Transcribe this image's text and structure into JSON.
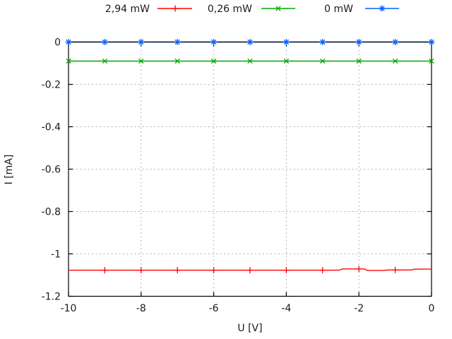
{
  "page": {
    "background": "#ffffff",
    "text_color": "#1a1a1a",
    "border_color": "#000000",
    "grid_color": "#b0b0b0"
  },
  "chart_data": {
    "type": "line",
    "title": "",
    "xlabel": "U [V]",
    "ylabel": "I [mA]",
    "xlim": [
      -10,
      0
    ],
    "ylim": [
      -1.2,
      0
    ],
    "xticks": [
      -10,
      -8,
      -6,
      -4,
      -2,
      0
    ],
    "xtick_labels": [
      "-10",
      "-8",
      "-6",
      "-4",
      "-2",
      "0"
    ],
    "yticks": [
      0,
      -0.2,
      -0.4,
      -0.6,
      -0.8,
      -1,
      -1.2
    ],
    "ytick_labels": [
      "0",
      "-0.2",
      "-0.4",
      "-0.6",
      "-0.8",
      "-1",
      "-1.2"
    ],
    "grid": true,
    "legend_position": "top-outside",
    "x": [
      -10,
      -9,
      -8,
      -7,
      -6,
      -5,
      -4,
      -3,
      -2,
      -1,
      0
    ],
    "series": [
      {
        "name": "2,94 mW",
        "color": "#ff0000",
        "marker": "plus",
        "values": [
          -1.077,
          -1.077,
          -1.077,
          -1.077,
          -1.077,
          -1.077,
          -1.077,
          -1.077,
          -1.071,
          -1.076,
          -1.072
        ],
        "marker_x": [
          -9,
          -8,
          -7,
          -6,
          -5,
          -4,
          -3,
          -2,
          -1
        ],
        "line_points": [
          [
            -10,
            -1.077
          ],
          [
            -2.55,
            -1.077
          ],
          [
            -2.45,
            -1.071
          ],
          [
            -1.85,
            -1.071
          ],
          [
            -1.78,
            -1.078
          ],
          [
            -1.3,
            -1.078
          ],
          [
            -1.24,
            -1.076
          ],
          [
            -0.55,
            -1.076
          ],
          [
            -0.48,
            -1.072
          ],
          [
            0,
            -1.072
          ]
        ]
      },
      {
        "name": "0,26 mW",
        "color": "#00a800",
        "marker": "cross",
        "values": [
          -0.09,
          -0.09,
          -0.09,
          -0.09,
          -0.09,
          -0.09,
          -0.09,
          -0.09,
          -0.09,
          -0.09,
          -0.09
        ],
        "marker_x": [
          -10,
          -9,
          -8,
          -7,
          -6,
          -5,
          -4,
          -3,
          -2,
          -1,
          0
        ]
      },
      {
        "name": "0 mW",
        "color": "#0060ff",
        "marker": "asterisk",
        "values": [
          0,
          0,
          0,
          0,
          0,
          0,
          0,
          0,
          0,
          0,
          0
        ],
        "marker_x": [
          -10,
          -9,
          -8,
          -7,
          -6,
          -5,
          -4,
          -3,
          -2,
          -1,
          0
        ]
      }
    ]
  }
}
